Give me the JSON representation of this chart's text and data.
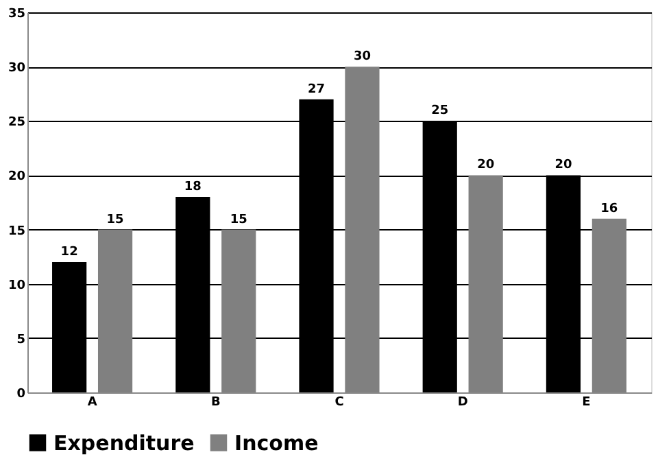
{
  "chart_data": {
    "type": "bar",
    "categories": [
      "A",
      "B",
      "C",
      "D",
      "E"
    ],
    "series": [
      {
        "name": "Expenditure",
        "color": "#000000",
        "values": [
          12,
          18,
          27,
          25,
          20
        ]
      },
      {
        "name": "Income",
        "color": "#808080",
        "values": [
          15,
          15,
          30,
          20,
          16
        ]
      }
    ],
    "ylim": [
      0,
      35
    ],
    "yticks": [
      0,
      5,
      10,
      15,
      20,
      25,
      30,
      35
    ],
    "grid": "y",
    "legend": "bottom",
    "data_labels": true
  }
}
